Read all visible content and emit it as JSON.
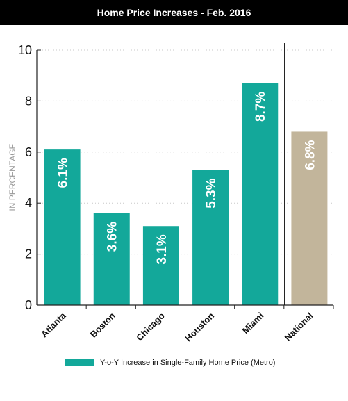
{
  "chart_data": {
    "type": "bar",
    "title": "Home Price Increases - Feb. 2016",
    "ylabel": "IN PERCENTAGE",
    "ylim": [
      0,
      10
    ],
    "yticks": [
      "0",
      "2",
      "4",
      "6",
      "8",
      "10"
    ],
    "grid": "horizontal-dotted",
    "categories": [
      "Atlanta",
      "Boston",
      "Chicago",
      "Houston",
      "Miami",
      "National"
    ],
    "values": [
      6.1,
      3.6,
      3.1,
      5.3,
      8.7,
      6.8
    ],
    "data_labels": [
      "6.1%",
      "3.6%",
      "3.1%",
      "5.3%",
      "8.7%",
      "6.8%"
    ],
    "bar_colors": [
      "#13a89a",
      "#13a89a",
      "#13a89a",
      "#13a89a",
      "#13a89a",
      "#c2b59b"
    ],
    "legend": {
      "position": "bottom-center",
      "entries": [
        {
          "label": "Y-o-Y Increase in Single-Family Home Price (Metro)",
          "color": "#13a89a"
        }
      ]
    }
  }
}
